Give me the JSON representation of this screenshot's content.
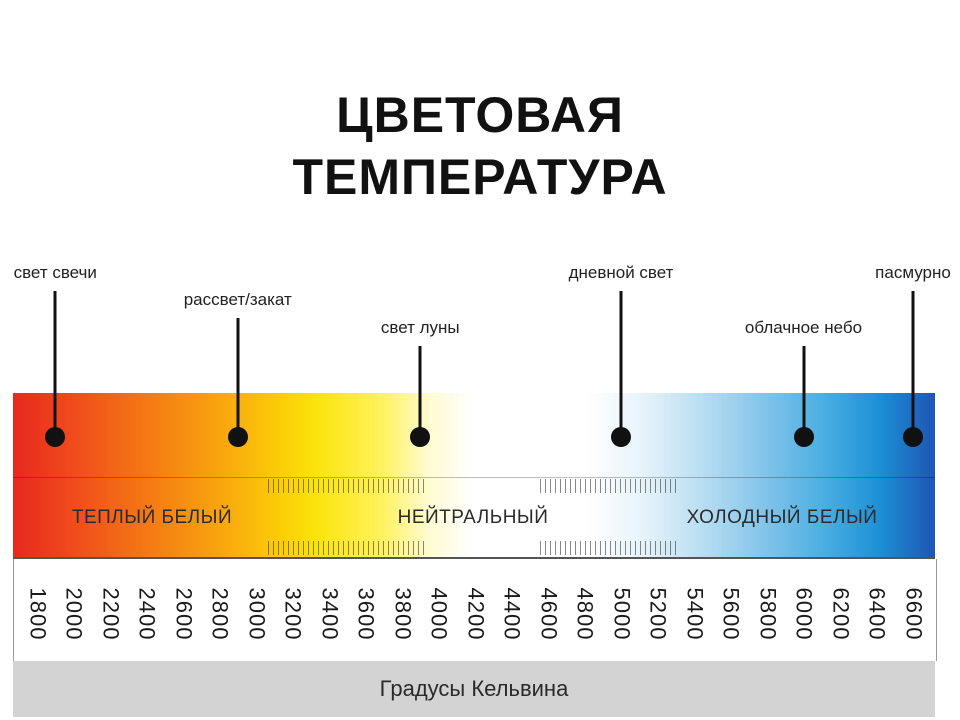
{
  "title": {
    "line1": "ЦВЕТОВАЯ",
    "line2": "ТЕМПЕРАТУРА"
  },
  "markers": [
    {
      "label": "свет свечи",
      "kelvin": 1900
    },
    {
      "label": "рассвет/закат",
      "kelvin": 2900
    },
    {
      "label": "свет луны",
      "kelvin": 3900
    },
    {
      "label": "дневной свет",
      "kelvin": 5000
    },
    {
      "label": "облачное небо",
      "kelvin": 6000
    },
    {
      "label": "пасмурно",
      "kelvin": 6600
    }
  ],
  "bands": [
    {
      "label": "ТЕПЛЫЙ БЕЛЫЙ"
    },
    {
      "label": "НЕЙТРАЛЬНЫЙ"
    },
    {
      "label": "ХОЛОДНЫЙ БЕЛЫЙ"
    }
  ],
  "ticks": [
    "1800",
    "2000",
    "2200",
    "2400",
    "2600",
    "2800",
    "3000",
    "3200",
    "3400",
    "3600",
    "3800",
    "4000",
    "4200",
    "4400",
    "4600",
    "4800",
    "5000",
    "5200",
    "5400",
    "5600",
    "5800",
    "6000",
    "6200",
    "6400",
    "6600"
  ],
  "footer": {
    "label": "Градусы Кельвина"
  },
  "colors": {
    "warm": "#e8281e",
    "neutral": "#ffffff",
    "cool": "#1f55b4",
    "marker": "#111111",
    "footer_bg": "#d3d3d3"
  }
}
